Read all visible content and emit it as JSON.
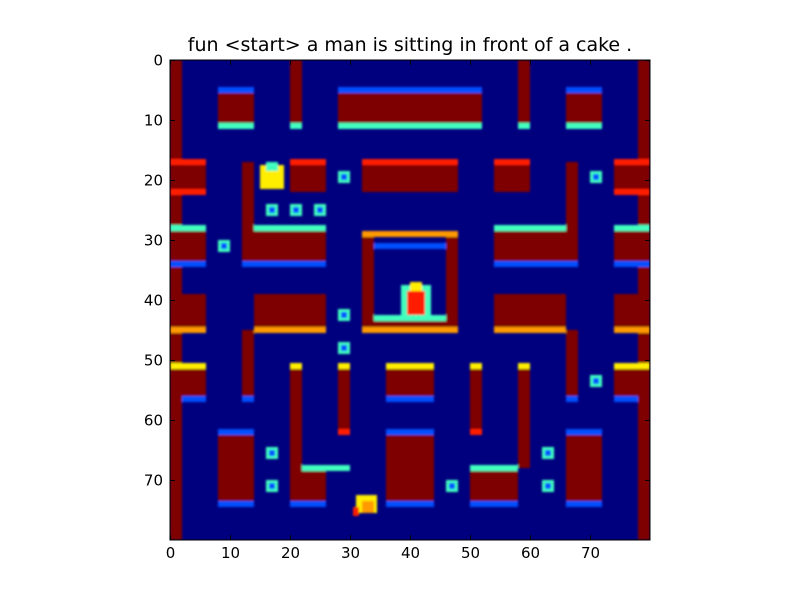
{
  "figure": {
    "title": "fun <start> a man is sitting in front of a cake ."
  },
  "axes": {
    "x_ticks": [
      "0",
      "10",
      "20",
      "30",
      "40",
      "50",
      "60",
      "70"
    ],
    "y_ticks": [
      "0",
      "10",
      "20",
      "30",
      "40",
      "50",
      "60",
      "70"
    ],
    "xlim": [
      0,
      80
    ],
    "ylim": [
      80,
      0
    ],
    "grid": false
  },
  "image": {
    "kind": "game-frame-heatmap",
    "game": "Pac-Man style maze",
    "colormap": "jet",
    "resolution": [
      80,
      80
    ],
    "colors": {
      "background": "#00007f",
      "wall": "#7f0000",
      "wall_edge_red": "#ff1a00",
      "wall_edge_orange": "#ff9a00",
      "edge_cyan": "#3fffbf",
      "edge_blue": "#0050ff",
      "pellet": "#3fffbf",
      "sprite_yellow": "#ffee00",
      "frame": "#000000"
    },
    "icons": [
      "pacman-sprite-icon",
      "ghost-icon",
      "power-pellet-icon"
    ]
  }
}
